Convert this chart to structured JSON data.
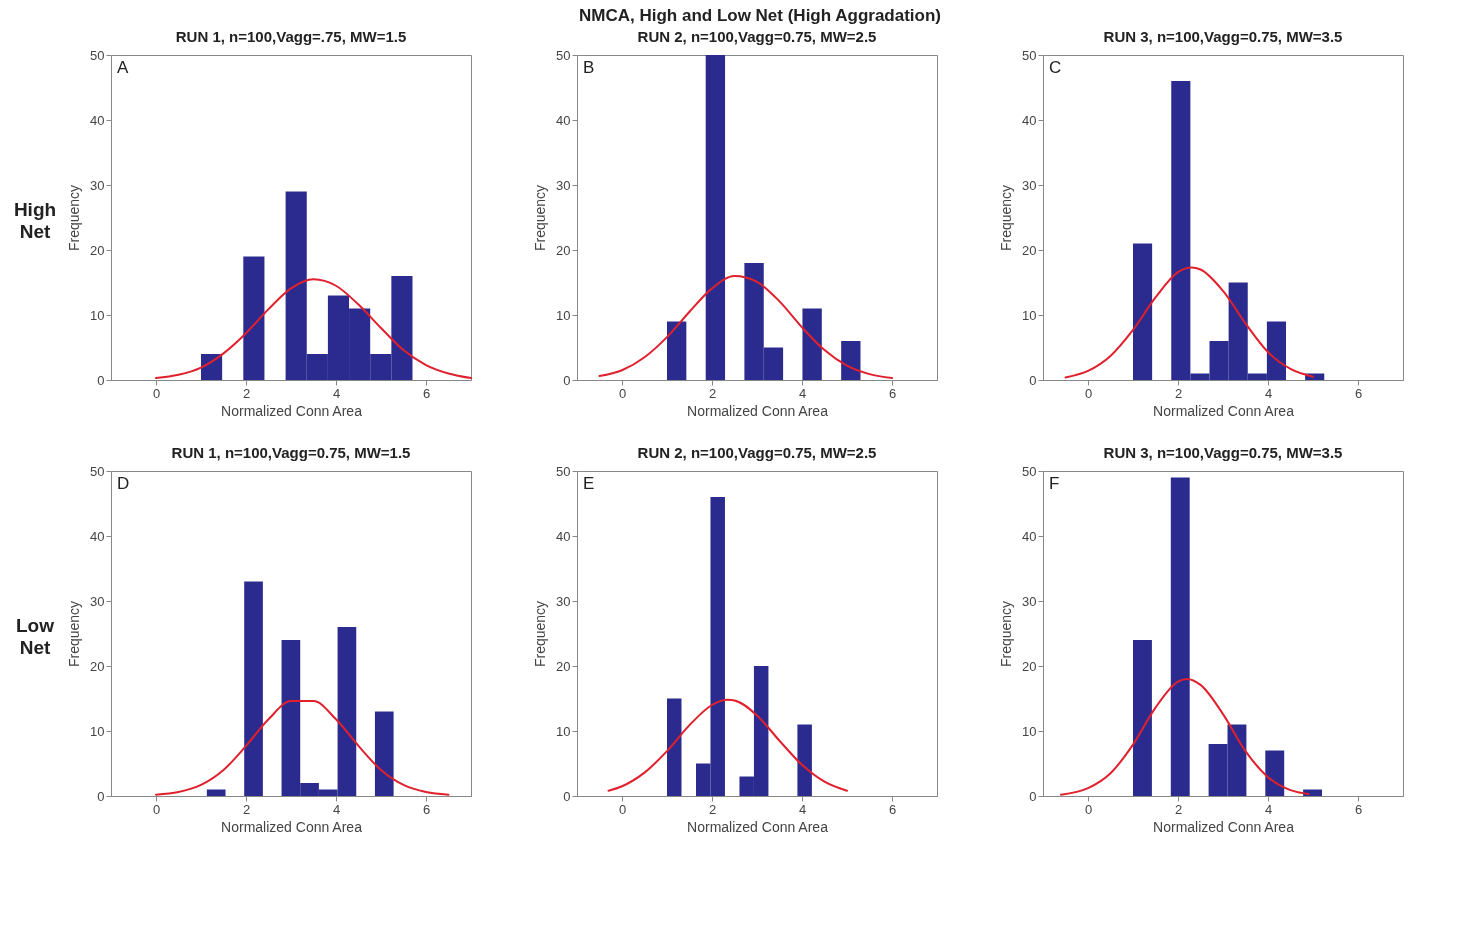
{
  "chart_data": [
    {
      "type": "histogram",
      "title": "RUN 1, n=100,Vagg=.75, MW=1.5",
      "xlabel": "Normalized Conn Area",
      "ylabel": "Frequency",
      "annotations": [
        "A",
        "High Net",
        "NMCA, High and Low Net (High Aggradation)"
      ],
      "xlim": [
        -1,
        7
      ],
      "xticks": [
        0,
        2,
        4,
        6
      ],
      "ylim": [
        0,
        50
      ],
      "yticks": [
        0,
        10,
        20,
        30,
        40,
        50
      ],
      "color": "#2b2b8f",
      "bins": [
        1.0,
        1.47,
        1.94,
        2.41,
        2.88,
        3.35,
        3.82,
        4.29,
        4.76,
        5.23,
        5.7
      ],
      "values": [
        4,
        0,
        19,
        0,
        29,
        4,
        13,
        11,
        4,
        16
      ],
      "series": [
        {
          "type": "line",
          "color": "#e0202c",
          "x": [
            0,
            0.5,
            1,
            1.5,
            2,
            2.5,
            3,
            3.5,
            4,
            4.5,
            5,
            5.5,
            6,
            6.5,
            7
          ],
          "values": [
            0.3,
            0.8,
            1.9,
            4.1,
            7.2,
            10.9,
            14.1,
            15.5,
            14.5,
            11.6,
            8.0,
            4.6,
            2.3,
            1.0,
            0.3
          ]
        }
      ]
    },
    {
      "type": "histogram",
      "title": "RUN 2, n=100,Vagg=0.75, MW=2.5",
      "xlabel": "Normalized Conn Area",
      "ylabel": "Frequency",
      "annotations": [
        "B"
      ],
      "xlim": [
        -1,
        7
      ],
      "xticks": [
        0,
        2,
        4,
        6
      ],
      "ylim": [
        0,
        50
      ],
      "yticks": [
        0,
        10,
        20,
        30,
        40,
        50
      ],
      "color": "#2b2b8f",
      "bins": [
        1.0,
        1.43,
        1.86,
        2.29,
        2.72,
        3.15,
        3.58,
        4.01,
        4.44,
        4.87,
        5.3
      ],
      "values": [
        9,
        0,
        50,
        0,
        18,
        5,
        0,
        11,
        0,
        6
      ],
      "series": [
        {
          "type": "line",
          "color": "#e0202c",
          "x": [
            -0.5,
            0,
            0.5,
            1,
            1.5,
            2,
            2.5,
            3,
            3.5,
            4,
            4.5,
            5,
            5.5,
            6
          ],
          "values": [
            0.6,
            1.5,
            3.5,
            6.6,
            10.5,
            14.1,
            16.0,
            15.1,
            12.1,
            8.1,
            4.6,
            2.2,
            0.9,
            0.3
          ]
        }
      ]
    },
    {
      "type": "histogram",
      "title": "RUN 3, n=100,Vagg=0.75, MW=3.5",
      "xlabel": "Normalized Conn Area",
      "ylabel": "Frequency",
      "annotations": [
        "C"
      ],
      "xlim": [
        -1,
        7
      ],
      "xticks": [
        0,
        2,
        4,
        6
      ],
      "ylim": [
        0,
        50
      ],
      "yticks": [
        0,
        10,
        20,
        30,
        40,
        50
      ],
      "color": "#2b2b8f",
      "bins": [
        1.0,
        1.425,
        1.85,
        2.275,
        2.7,
        3.125,
        3.55,
        3.975,
        4.4,
        4.825,
        5.25
      ],
      "values": [
        21,
        0,
        46,
        1,
        6,
        15,
        1,
        9,
        0,
        1
      ],
      "series": [
        {
          "type": "line",
          "color": "#e0202c",
          "x": [
            -0.5,
            0,
            0.5,
            1,
            1.5,
            2,
            2.3,
            2.5,
            3,
            3.5,
            4,
            4.5,
            5
          ],
          "values": [
            0.4,
            1.4,
            3.7,
            7.7,
            12.7,
            16.6,
            17.3,
            17.0,
            13.7,
            8.7,
            4.3,
            1.7,
            0.5
          ]
        }
      ]
    },
    {
      "type": "histogram",
      "title": "RUN 1, n=100,Vagg=0.75, MW=1.5",
      "xlabel": "Normalized Conn Area",
      "ylabel": "Frequency",
      "annotations": [
        "D",
        "Low Net"
      ],
      "xlim": [
        -1,
        7
      ],
      "xticks": [
        0,
        2,
        4,
        6
      ],
      "ylim": [
        0,
        50
      ],
      "yticks": [
        0,
        10,
        20,
        30,
        40,
        50
      ],
      "color": "#2b2b8f",
      "bins": [
        1.13,
        1.545,
        1.96,
        2.375,
        2.79,
        3.205,
        3.62,
        4.035,
        4.45,
        4.865,
        5.28
      ],
      "values": [
        1,
        0,
        33,
        0,
        24,
        2,
        1,
        26,
        0,
        13
      ],
      "series": [
        {
          "type": "line",
          "color": "#e0202c",
          "x": [
            0,
            0.5,
            1,
            1.5,
            2,
            2.5,
            3,
            3.5,
            4,
            4.5,
            5,
            5.5,
            6,
            6.5
          ],
          "values": [
            0.2,
            0.6,
            1.7,
            4.0,
            7.7,
            11.8,
            14.6,
            14.6,
            11.8,
            7.7,
            4.0,
            1.7,
            0.6,
            0.2
          ]
        }
      ]
    },
    {
      "type": "histogram",
      "title": "RUN 2, n=100,Vagg=0.75, MW=2.5",
      "xlabel": "Normalized Conn Area",
      "ylabel": "Frequency",
      "annotations": [
        "E"
      ],
      "xlim": [
        -1,
        7
      ],
      "xticks": [
        0,
        2,
        4,
        6
      ],
      "ylim": [
        0,
        50
      ],
      "yticks": [
        0,
        10,
        20,
        30,
        40,
        50
      ],
      "color": "#2b2b8f",
      "bins": [
        1.0,
        1.322,
        1.644,
        1.966,
        2.288,
        2.61,
        2.932,
        3.254,
        3.576,
        3.898,
        4.22
      ],
      "values": [
        15,
        0,
        5,
        46,
        0,
        3,
        20,
        0,
        0,
        11
      ],
      "series": [
        {
          "type": "line",
          "color": "#e0202c",
          "x": [
            -0.3,
            0,
            0.5,
            1,
            1.5,
            2,
            2.35,
            2.5,
            3,
            3.5,
            4,
            4.5,
            5
          ],
          "values": [
            0.8,
            1.5,
            3.6,
            6.9,
            10.9,
            14.0,
            14.8,
            14.7,
            12.4,
            8.5,
            4.8,
            2.2,
            0.8
          ]
        }
      ]
    },
    {
      "type": "histogram",
      "title": "RUN 3, n=100,Vagg=0.75, MW=3.5",
      "xlabel": "Normalized Conn Area",
      "ylabel": "Frequency",
      "annotations": [
        "F"
      ],
      "xlim": [
        -1,
        7
      ],
      "xticks": [
        0,
        2,
        4,
        6
      ],
      "ylim": [
        0,
        50
      ],
      "yticks": [
        0,
        10,
        20,
        30,
        40,
        50
      ],
      "color": "#2b2b8f",
      "bins": [
        1.0,
        1.42,
        1.84,
        2.26,
        2.68,
        3.1,
        3.52,
        3.94,
        4.36,
        4.78,
        5.2
      ],
      "values": [
        24,
        0,
        49,
        0,
        8,
        11,
        0,
        7,
        0,
        1
      ],
      "series": [
        {
          "type": "line",
          "color": "#e0202c",
          "x": [
            -0.6,
            0,
            0.5,
            1,
            1.5,
            2,
            2.2,
            2.5,
            3,
            3.5,
            4,
            4.5,
            4.9
          ],
          "values": [
            0.2,
            1.2,
            3.5,
            7.9,
            13.6,
            17.6,
            18.0,
            17.1,
            12.6,
            6.9,
            2.9,
            0.9,
            0.3
          ]
        }
      ]
    }
  ]
}
